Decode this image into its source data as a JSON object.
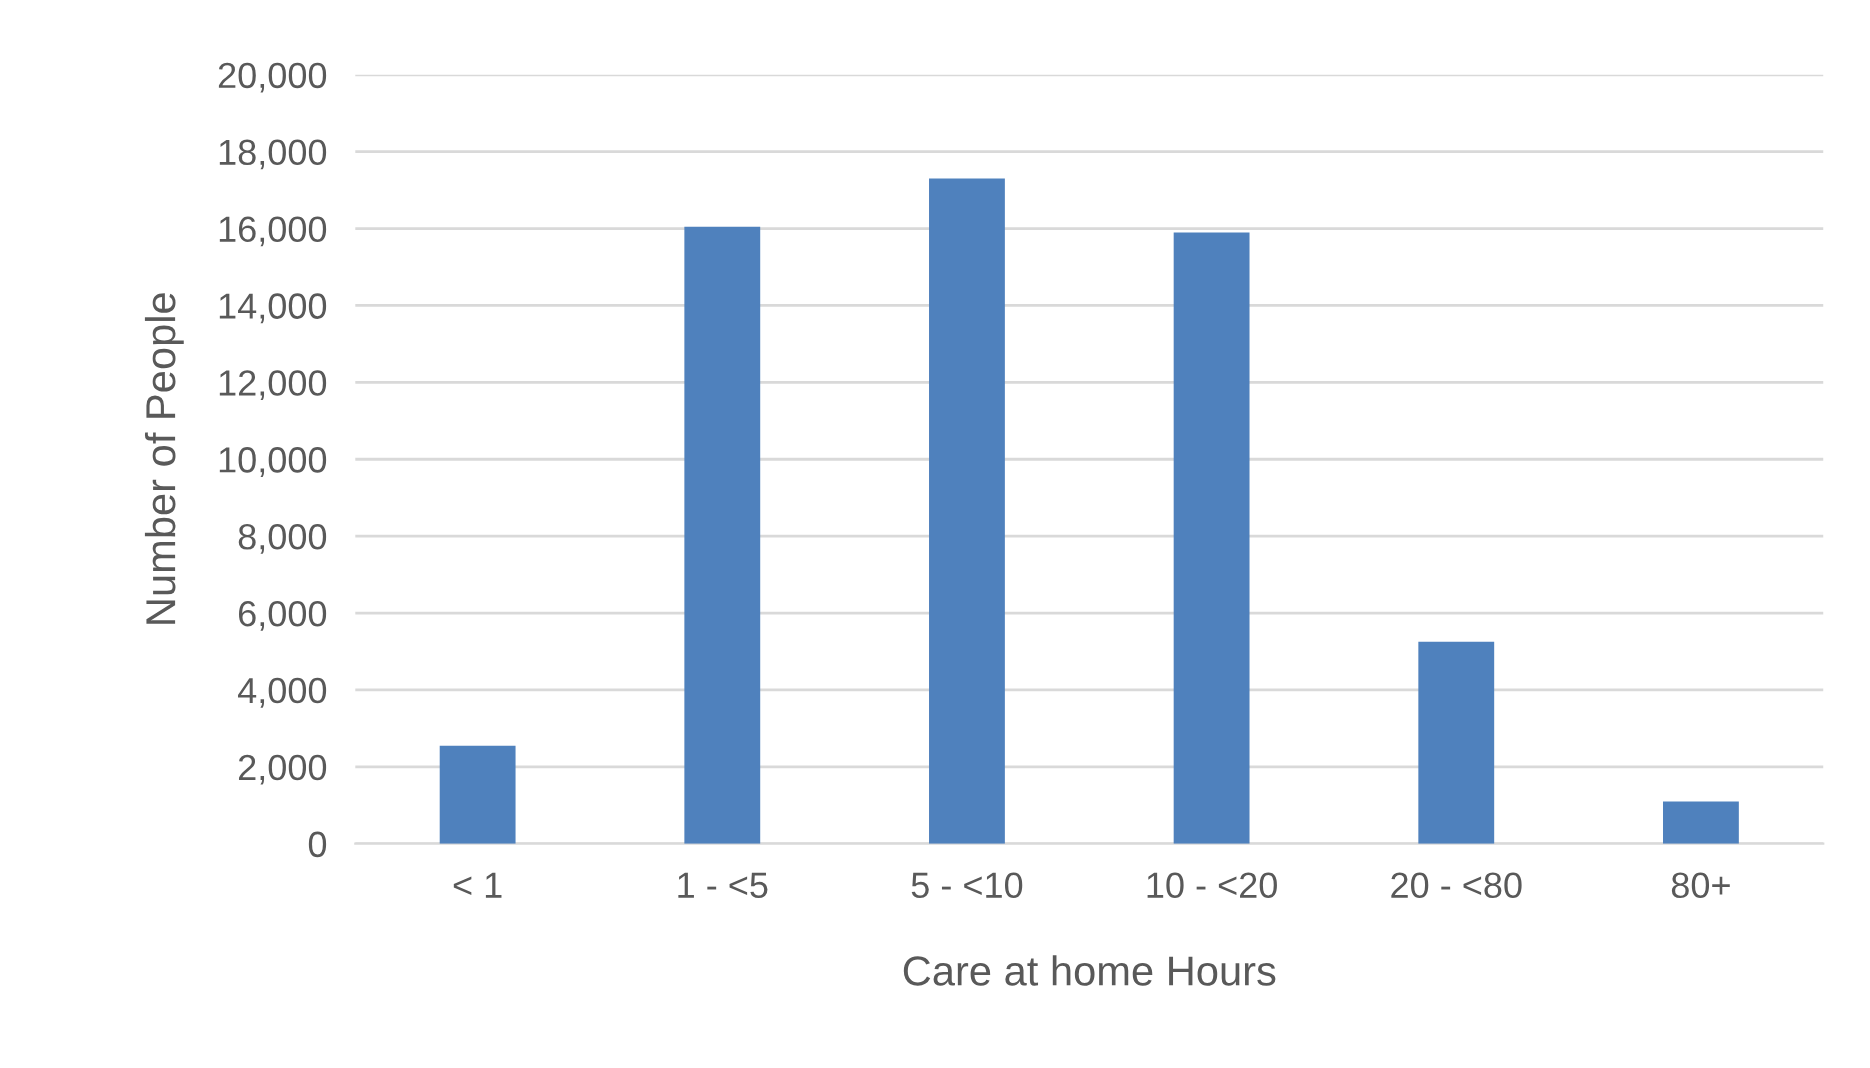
{
  "chart_data": {
    "type": "bar",
    "xlabel": "Care at home Hours",
    "ylabel": "Number of People",
    "categories": [
      "< 1",
      "1 - <5",
      "5 - <10",
      "10 - <20",
      "20 - <80",
      "80+"
    ],
    "values": [
      2550,
      16050,
      17300,
      15900,
      5250,
      1100
    ],
    "color": "#4f81bd",
    "ylim": [
      0,
      20000
    ],
    "yticks": [
      0,
      {
        "value": 2000,
        "label": "2,000"
      },
      {
        "value": 4000,
        "label": "4,000"
      },
      {
        "value": 6000,
        "label": "6,000"
      },
      {
        "value": 8000,
        "label": "8,000"
      },
      {
        "value": 10000,
        "label": "10,000"
      },
      {
        "value": 12000,
        "label": "12,000"
      },
      {
        "value": 14000,
        "label": "14,000"
      },
      {
        "value": 16000,
        "label": "16,000"
      },
      {
        "value": 18000,
        "label": "18,000"
      },
      {
        "value": 20000,
        "label": "20,000"
      }
    ],
    "grid": "y",
    "legend": false
  }
}
